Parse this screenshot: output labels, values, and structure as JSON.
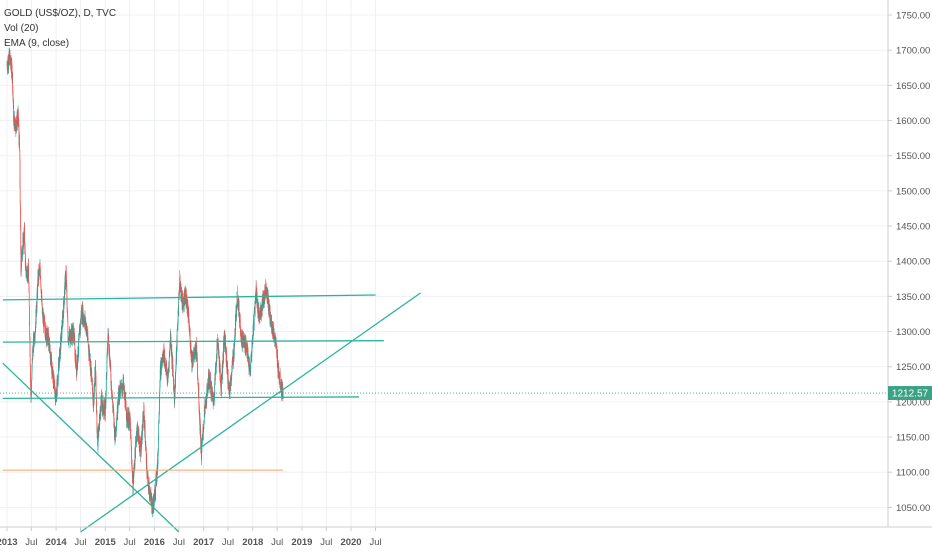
{
  "legend": {
    "symbol": "GOLD (US$/OZ), D, TVC",
    "vol": "Vol (20)",
    "ema": "EMA (9, close)"
  },
  "colors": {
    "candle_up": "#26a69a",
    "candle_down": "#ef5350",
    "trendline": "#2bb59a",
    "support_line": "#f5a46a",
    "last_price_bg": "#3aa385",
    "grid": "#edf0f4",
    "axis_text": "#555555"
  },
  "chart_data": {
    "type": "candlestick",
    "symbol": "GOLD (US$/OZ)",
    "interval": "D",
    "source": "TVC",
    "indicators": [
      "Vol (20)",
      "EMA (9, close)"
    ],
    "ylim": [
      1015,
      1760
    ],
    "y_ticks": [
      1050,
      1100,
      1150,
      1200,
      1250,
      1300,
      1350,
      1400,
      1450,
      1500,
      1550,
      1600,
      1650,
      1700,
      1750
    ],
    "y_tick_labels": [
      "1050.00",
      "1100.00",
      "1150.00",
      "1200.00",
      "1250.00",
      "1300.00",
      "1350.00",
      "1400.00",
      "1450.00",
      "1500.00",
      "1550.00",
      "1600.00",
      "1650.00",
      "1700.00",
      "1750.00"
    ],
    "x_range": [
      "2013-01-01",
      "2020-12-01"
    ],
    "x_ticks": [
      {
        "date": "2013-01-01",
        "label": "2013"
      },
      {
        "date": "2013-07-01",
        "label": "Jul"
      },
      {
        "date": "2014-01-01",
        "label": "2014"
      },
      {
        "date": "2014-07-01",
        "label": "Jul"
      },
      {
        "date": "2015-01-01",
        "label": "2015"
      },
      {
        "date": "2015-07-01",
        "label": "Jul"
      },
      {
        "date": "2016-01-01",
        "label": "2016"
      },
      {
        "date": "2016-07-01",
        "label": "Jul"
      },
      {
        "date": "2017-01-01",
        "label": "2017"
      },
      {
        "date": "2017-07-01",
        "label": "Jul"
      },
      {
        "date": "2018-01-01",
        "label": "2018"
      },
      {
        "date": "2018-07-01",
        "label": "Jul"
      },
      {
        "date": "2019-01-01",
        "label": "2019"
      },
      {
        "date": "2019-07-01",
        "label": "Jul"
      },
      {
        "date": "2020-01-01",
        "label": "2020"
      },
      {
        "date": "2020-07-01",
        "label": "Jul"
      }
    ],
    "last_price": 1212.57,
    "last_price_label": "1212.57",
    "price_path": [
      [
        "2013-01-01",
        1680
      ],
      [
        "2013-01-20",
        1690
      ],
      [
        "2013-02-10",
        1665
      ],
      [
        "2013-02-20",
        1600
      ],
      [
        "2013-03-10",
        1595
      ],
      [
        "2013-03-25",
        1605
      ],
      [
        "2013-04-05",
        1555
      ],
      [
        "2013-04-15",
        1385
      ],
      [
        "2013-04-20",
        1410
      ],
      [
        "2013-05-10",
        1440
      ],
      [
        "2013-05-20",
        1385
      ],
      [
        "2013-06-10",
        1385
      ],
      [
        "2013-06-28",
        1200
      ],
      [
        "2013-07-10",
        1270
      ],
      [
        "2013-08-01",
        1310
      ],
      [
        "2013-08-20",
        1375
      ],
      [
        "2013-09-05",
        1390
      ],
      [
        "2013-09-20",
        1325
      ],
      [
        "2013-10-15",
        1300
      ],
      [
        "2013-11-10",
        1285
      ],
      [
        "2013-12-05",
        1240
      ],
      [
        "2013-12-31",
        1205
      ],
      [
        "2014-01-20",
        1250
      ],
      [
        "2014-02-20",
        1320
      ],
      [
        "2014-03-15",
        1385
      ],
      [
        "2014-04-01",
        1290
      ],
      [
        "2014-05-10",
        1300
      ],
      [
        "2014-06-01",
        1245
      ],
      [
        "2014-07-10",
        1330
      ],
      [
        "2014-08-10",
        1310
      ],
      [
        "2014-09-10",
        1260
      ],
      [
        "2014-10-05",
        1200
      ],
      [
        "2014-10-20",
        1245
      ],
      [
        "2014-11-05",
        1140
      ],
      [
        "2014-12-01",
        1200
      ],
      [
        "2014-12-31",
        1185
      ],
      [
        "2015-01-22",
        1300
      ],
      [
        "2015-02-20",
        1210
      ],
      [
        "2015-03-15",
        1150
      ],
      [
        "2015-04-10",
        1210
      ],
      [
        "2015-05-15",
        1225
      ],
      [
        "2015-06-10",
        1180
      ],
      [
        "2015-07-05",
        1170
      ],
      [
        "2015-07-25",
        1080
      ],
      [
        "2015-08-25",
        1165
      ],
      [
        "2015-09-20",
        1130
      ],
      [
        "2015-10-15",
        1185
      ],
      [
        "2015-11-10",
        1090
      ],
      [
        "2015-12-17",
        1050
      ],
      [
        "2015-12-31",
        1062
      ],
      [
        "2016-01-25",
        1110
      ],
      [
        "2016-02-12",
        1240
      ],
      [
        "2016-03-10",
        1270
      ],
      [
        "2016-04-10",
        1230
      ],
      [
        "2016-04-30",
        1295
      ],
      [
        "2016-05-30",
        1205
      ],
      [
        "2016-06-24",
        1320
      ],
      [
        "2016-07-06",
        1370
      ],
      [
        "2016-08-05",
        1335
      ],
      [
        "2016-08-18",
        1355
      ],
      [
        "2016-09-05",
        1330
      ],
      [
        "2016-10-05",
        1260
      ],
      [
        "2016-11-10",
        1275
      ],
      [
        "2016-12-15",
        1125
      ],
      [
        "2017-01-05",
        1180
      ],
      [
        "2017-02-10",
        1235
      ],
      [
        "2017-03-15",
        1200
      ],
      [
        "2017-04-15",
        1290
      ],
      [
        "2017-05-10",
        1220
      ],
      [
        "2017-06-05",
        1295
      ],
      [
        "2017-07-10",
        1210
      ],
      [
        "2017-08-15",
        1275
      ],
      [
        "2017-09-08",
        1355
      ],
      [
        "2017-10-10",
        1290
      ],
      [
        "2017-11-15",
        1280
      ],
      [
        "2017-12-12",
        1240
      ],
      [
        "2018-01-25",
        1360
      ],
      [
        "2018-02-15",
        1320
      ],
      [
        "2018-03-15",
        1340
      ],
      [
        "2018-04-11",
        1365
      ],
      [
        "2018-05-10",
        1320
      ],
      [
        "2018-06-15",
        1290
      ],
      [
        "2018-07-15",
        1240
      ],
      [
        "2018-08-01",
        1220
      ],
      [
        "2018-08-16",
        1212.57
      ]
    ],
    "drawings": [
      {
        "name": "resistance-line-1350",
        "type": "trendline",
        "from": [
          "2012-12-01",
          1345
        ],
        "to": [
          "2020-07-01",
          1352
        ]
      },
      {
        "name": "resistance-line-1288",
        "type": "trendline",
        "from": [
          "2012-12-01",
          1285
        ],
        "to": [
          "2020-09-01",
          1287
        ]
      },
      {
        "name": "support-line-1205",
        "type": "trendline",
        "from": [
          "2012-12-01",
          1205
        ],
        "to": [
          "2020-03-01",
          1207
        ]
      },
      {
        "name": "rising-trendline",
        "type": "trendline",
        "from": [
          "2014-07-01",
          1015
        ],
        "to": [
          "2021-06-01",
          1355
        ]
      },
      {
        "name": "falling-trendline",
        "type": "trendline",
        "from": [
          "2012-12-01",
          1255
        ],
        "to": [
          "2016-07-01",
          1015
        ]
      },
      {
        "name": "low-support-line-1103",
        "type": "horizontal",
        "from": [
          "2012-12-01",
          1103
        ],
        "to": [
          "2018-08-16",
          1103
        ]
      }
    ]
  }
}
